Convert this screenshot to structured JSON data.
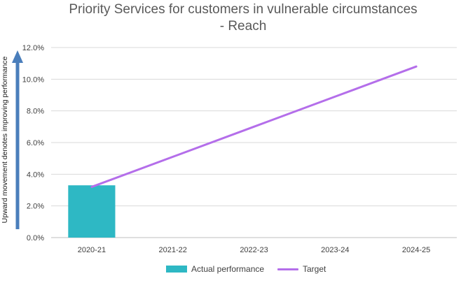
{
  "chart_data": {
    "type": "bar",
    "title_lines": [
      "Priority Services for customers in vulnerable circumstances",
      "- Reach"
    ],
    "side_label": "Upward movement denotes improving performance",
    "categories": [
      "2020-21",
      "2021-22",
      "2022-23",
      "2023-24",
      "2024-25"
    ],
    "series": [
      {
        "name": "Actual performance",
        "kind": "bar",
        "color": "#2eb8c4",
        "values": [
          3.3,
          null,
          null,
          null,
          null
        ]
      },
      {
        "name": "Target",
        "kind": "line",
        "color": "#b46eea",
        "values": [
          3.2,
          5.1,
          7.0,
          8.9,
          10.8
        ]
      }
    ],
    "ylim": [
      0,
      12
    ],
    "yticks": [
      0,
      2,
      4,
      6,
      8,
      10,
      12
    ],
    "ytick_labels": [
      "0.0%",
      "2.0%",
      "4.0%",
      "6.0%",
      "8.0%",
      "10.0%",
      "12.0%"
    ],
    "gridlines": true,
    "legend_position": "bottom",
    "arrow_color": "#4a7ebb"
  }
}
